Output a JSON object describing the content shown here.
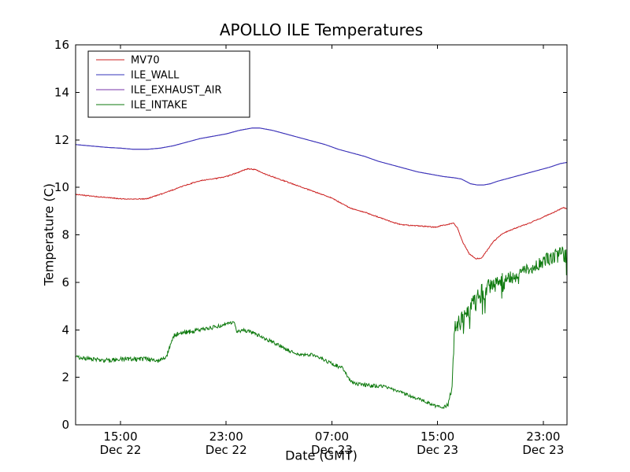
{
  "chart_data": {
    "type": "line",
    "title": "APOLLO ILE Temperatures",
    "xlabel": "Date (GMT)",
    "ylabel": "Temperature (C)",
    "x_unit": "hours since Dec 22 00:00 GMT",
    "xlim": [
      11.6,
      48.8
    ],
    "ylim": [
      0,
      16
    ],
    "grid": false,
    "legend_position": "upper left",
    "y_ticks": [
      0,
      2,
      4,
      6,
      8,
      10,
      12,
      14,
      16
    ],
    "x_ticks": [
      {
        "value": 15,
        "time": "15:00",
        "date": "Dec 22"
      },
      {
        "value": 23,
        "time": "23:00",
        "date": "Dec 22"
      },
      {
        "value": 31,
        "time": "07:00",
        "date": "Dec 23"
      },
      {
        "value": 39,
        "time": "15:00",
        "date": "Dec 23"
      },
      {
        "value": 47,
        "time": "23:00",
        "date": "Dec 23"
      }
    ],
    "series": [
      {
        "name": "MV70",
        "color": "#cc2222",
        "zorder": 3,
        "noise": 0.02,
        "points": [
          [
            11.6,
            9.7
          ],
          [
            13,
            9.62
          ],
          [
            14,
            9.57
          ],
          [
            15,
            9.52
          ],
          [
            16,
            9.5
          ],
          [
            17,
            9.52
          ],
          [
            18,
            9.7
          ],
          [
            19,
            9.9
          ],
          [
            20,
            10.1
          ],
          [
            21,
            10.28
          ],
          [
            22,
            10.35
          ],
          [
            23,
            10.45
          ],
          [
            24,
            10.65
          ],
          [
            24.6,
            10.78
          ],
          [
            25.2,
            10.75
          ],
          [
            26,
            10.55
          ],
          [
            27,
            10.35
          ],
          [
            28,
            10.15
          ],
          [
            29,
            9.95
          ],
          [
            30,
            9.75
          ],
          [
            31,
            9.55
          ],
          [
            31.8,
            9.3
          ],
          [
            32.5,
            9.1
          ],
          [
            33.5,
            8.95
          ],
          [
            34.5,
            8.75
          ],
          [
            35.5,
            8.55
          ],
          [
            36.3,
            8.42
          ],
          [
            37.5,
            8.38
          ],
          [
            38.8,
            8.32
          ],
          [
            39.6,
            8.42
          ],
          [
            40.2,
            8.5
          ],
          [
            40.5,
            8.3
          ],
          [
            40.9,
            7.7
          ],
          [
            41.4,
            7.2
          ],
          [
            41.9,
            7.0
          ],
          [
            42.3,
            7.0
          ],
          [
            42.7,
            7.3
          ],
          [
            43.2,
            7.7
          ],
          [
            43.8,
            8.0
          ],
          [
            44.3,
            8.15
          ],
          [
            45,
            8.3
          ],
          [
            46,
            8.5
          ],
          [
            47,
            8.75
          ],
          [
            48,
            9.0
          ],
          [
            48.5,
            9.15
          ],
          [
            48.8,
            9.1
          ]
        ]
      },
      {
        "name": "ILE_WALL",
        "color": "#3333bb",
        "zorder": 2,
        "noise": 0,
        "points": [
          [
            11.6,
            11.8
          ],
          [
            13,
            11.73
          ],
          [
            14,
            11.68
          ],
          [
            15,
            11.65
          ],
          [
            16,
            11.6
          ],
          [
            17,
            11.6
          ],
          [
            18,
            11.65
          ],
          [
            19,
            11.75
          ],
          [
            20,
            11.9
          ],
          [
            21,
            12.05
          ],
          [
            22,
            12.15
          ],
          [
            23,
            12.25
          ],
          [
            24,
            12.4
          ],
          [
            25,
            12.5
          ],
          [
            25.5,
            12.5
          ],
          [
            26.5,
            12.4
          ],
          [
            27.5,
            12.25
          ],
          [
            28.5,
            12.1
          ],
          [
            29.5,
            11.95
          ],
          [
            30.5,
            11.8
          ],
          [
            31.5,
            11.6
          ],
          [
            32.5,
            11.45
          ],
          [
            33.5,
            11.3
          ],
          [
            34.5,
            11.1
          ],
          [
            35.5,
            10.95
          ],
          [
            36.5,
            10.8
          ],
          [
            37.5,
            10.65
          ],
          [
            38.5,
            10.55
          ],
          [
            39.5,
            10.45
          ],
          [
            40.3,
            10.4
          ],
          [
            40.8,
            10.35
          ],
          [
            41.5,
            10.15
          ],
          [
            42,
            10.1
          ],
          [
            42.5,
            10.1
          ],
          [
            43,
            10.15
          ],
          [
            43.5,
            10.25
          ],
          [
            44.5,
            10.4
          ],
          [
            45.5,
            10.55
          ],
          [
            46.5,
            10.7
          ],
          [
            47.5,
            10.85
          ],
          [
            48.3,
            11.0
          ],
          [
            48.8,
            11.05
          ]
        ]
      },
      {
        "name": "ILE_EXHAUST_AIR",
        "color": "#7733aa",
        "zorder": 1,
        "noise": 0,
        "points": [
          [
            11.6,
            11.8
          ],
          [
            13,
            11.73
          ],
          [
            14,
            11.68
          ],
          [
            15,
            11.65
          ],
          [
            16,
            11.6
          ],
          [
            17,
            11.6
          ],
          [
            18,
            11.65
          ],
          [
            19,
            11.75
          ],
          [
            20,
            11.9
          ],
          [
            21,
            12.05
          ],
          [
            22,
            12.15
          ],
          [
            23,
            12.25
          ],
          [
            24,
            12.4
          ],
          [
            25,
            12.5
          ],
          [
            25.5,
            12.5
          ],
          [
            26.5,
            12.4
          ],
          [
            27.5,
            12.25
          ],
          [
            28.5,
            12.1
          ],
          [
            29.5,
            11.95
          ],
          [
            30.5,
            11.8
          ],
          [
            31.5,
            11.6
          ],
          [
            32.5,
            11.45
          ],
          [
            33.5,
            11.3
          ],
          [
            34.5,
            11.1
          ],
          [
            35.5,
            10.95
          ],
          [
            36.5,
            10.8
          ],
          [
            37.5,
            10.65
          ],
          [
            38.5,
            10.55
          ],
          [
            39.5,
            10.45
          ],
          [
            40.3,
            10.4
          ],
          [
            40.8,
            10.35
          ],
          [
            41.5,
            10.15
          ],
          [
            42,
            10.1
          ],
          [
            42.5,
            10.1
          ],
          [
            43,
            10.15
          ],
          [
            43.5,
            10.25
          ],
          [
            44.5,
            10.4
          ],
          [
            45.5,
            10.55
          ],
          [
            46.5,
            10.7
          ],
          [
            47.5,
            10.85
          ],
          [
            48.3,
            11.0
          ],
          [
            48.8,
            11.05
          ]
        ]
      },
      {
        "name": "ILE_INTAKE",
        "color": "#0e7a0e",
        "zorder": 4,
        "noise": 0.08,
        "points": [
          [
            11.6,
            2.85,
            0.08
          ],
          [
            13,
            2.75,
            0.08
          ],
          [
            14,
            2.7,
            0.1
          ],
          [
            15,
            2.78,
            0.08
          ],
          [
            16,
            2.75,
            0.1
          ],
          [
            17,
            2.78,
            0.1
          ],
          [
            17.8,
            2.65,
            0.08
          ],
          [
            18.5,
            2.9,
            0.1
          ],
          [
            19,
            3.75,
            0.12
          ],
          [
            19.5,
            3.85,
            0.1
          ],
          [
            20.5,
            3.95,
            0.1
          ],
          [
            21.5,
            4.05,
            0.08
          ],
          [
            22.5,
            4.15,
            0.08
          ],
          [
            23.3,
            4.28,
            0.06
          ],
          [
            23.6,
            4.32,
            0.05
          ],
          [
            23.8,
            3.92,
            0.06
          ],
          [
            24.3,
            4.0,
            0.08
          ],
          [
            25,
            3.88,
            0.08
          ],
          [
            26,
            3.62,
            0.08
          ],
          [
            27,
            3.35,
            0.08
          ],
          [
            28,
            3.05,
            0.08
          ],
          [
            28.6,
            2.95,
            0.06
          ],
          [
            29.6,
            2.95,
            0.07
          ],
          [
            30.2,
            2.78,
            0.08
          ],
          [
            31,
            2.58,
            0.08
          ],
          [
            31.8,
            2.38,
            0.08
          ],
          [
            32.4,
            1.85,
            0.08
          ],
          [
            33,
            1.72,
            0.08
          ],
          [
            34,
            1.65,
            0.08
          ],
          [
            35,
            1.62,
            0.07
          ],
          [
            35.6,
            1.5,
            0.06
          ],
          [
            36.2,
            1.38,
            0.06
          ],
          [
            37,
            1.2,
            0.06
          ],
          [
            38,
            1.0,
            0.06
          ],
          [
            38.8,
            0.8,
            0.06
          ],
          [
            39.4,
            0.72,
            0.06
          ],
          [
            39.8,
            0.85,
            0.08
          ],
          [
            40.1,
            1.6,
            0.15
          ],
          [
            40.3,
            4.3,
            0.35
          ],
          [
            40.6,
            4.4,
            0.5
          ],
          [
            41,
            4.3,
            0.5
          ],
          [
            41.4,
            4.9,
            0.45
          ],
          [
            41.9,
            5.15,
            0.45
          ],
          [
            42.4,
            5.55,
            0.45
          ],
          [
            42.9,
            5.8,
            0.4
          ],
          [
            43.4,
            5.95,
            0.35
          ],
          [
            43.9,
            6.0,
            0.45
          ],
          [
            44.4,
            6.2,
            0.3
          ],
          [
            44.9,
            6.3,
            0.3
          ],
          [
            45.4,
            6.45,
            0.25
          ],
          [
            45.9,
            6.55,
            0.25
          ],
          [
            46.4,
            6.65,
            0.25
          ],
          [
            46.9,
            6.85,
            0.3
          ],
          [
            47.4,
            7.0,
            0.3
          ],
          [
            47.9,
            7.1,
            0.3
          ],
          [
            48.4,
            7.2,
            0.35
          ],
          [
            48.8,
            7.1,
            0.35
          ]
        ]
      }
    ],
    "colors": {
      "frame": "#000000",
      "background": "#ffffff",
      "text": "#000000"
    }
  }
}
